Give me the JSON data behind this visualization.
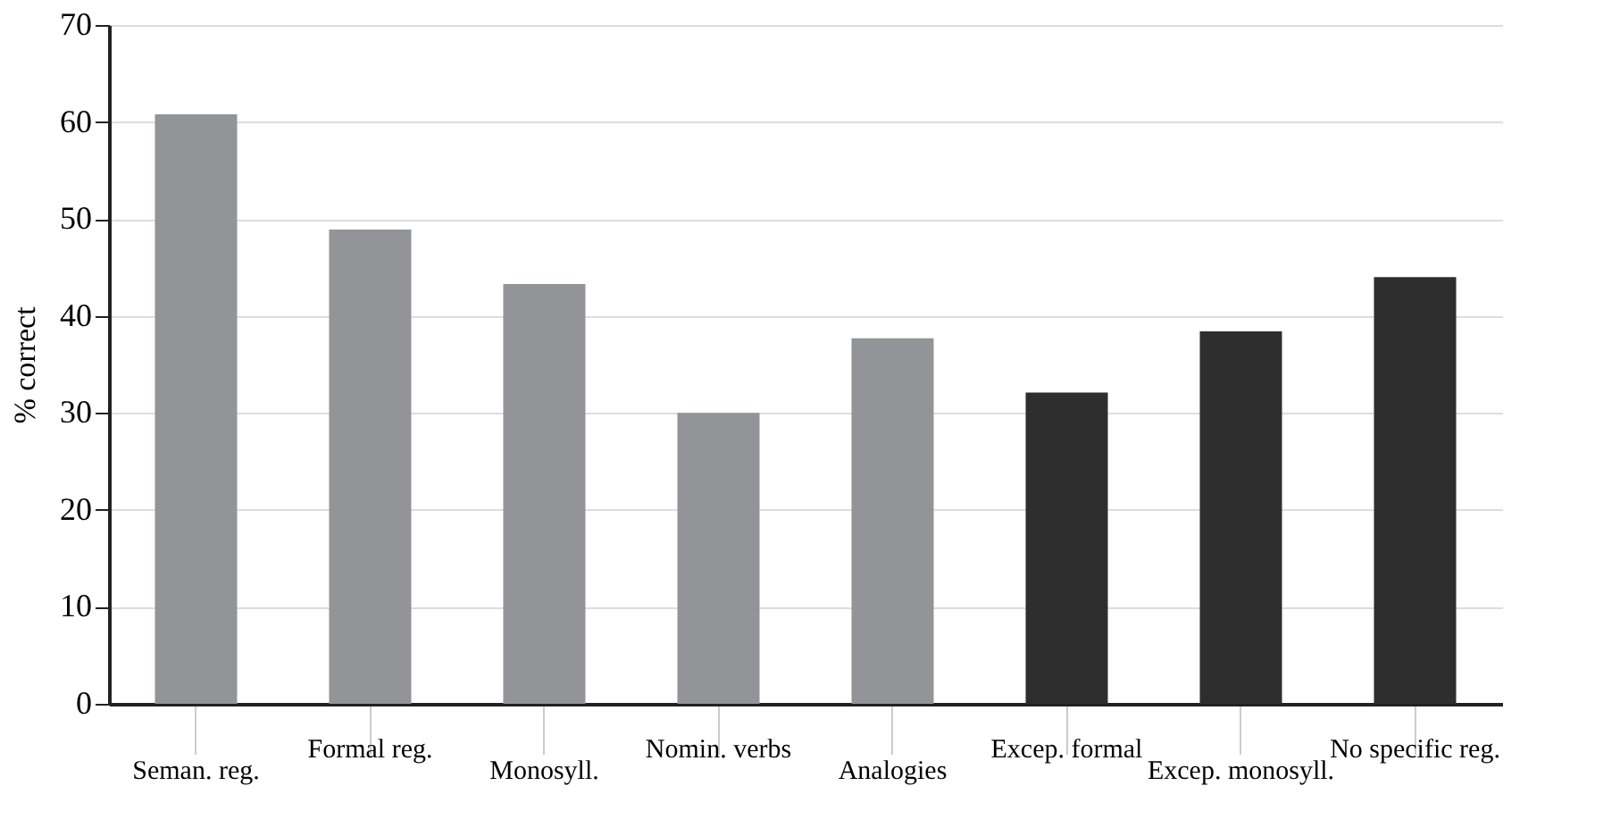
{
  "chart_data": {
    "type": "bar",
    "ylabel": "% correct",
    "categories": [
      "Seman. reg.",
      "Formal reg.",
      "Monosyll.",
      "Nomin. verbs",
      "Analogies",
      "Excep. formal",
      "Excep. monosyll.",
      "No specific reg."
    ],
    "values": [
      60.8,
      48.9,
      43.3,
      30.0,
      37.7,
      32.1,
      38.4,
      44.0
    ],
    "colors": [
      "#939497",
      "#939497",
      "#939497",
      "#939497",
      "#939497",
      "#2e2e2e",
      "#2e2e2e",
      "#2e2e2e"
    ],
    "ylim": [
      0,
      70
    ],
    "yticks": [
      0,
      10,
      20,
      30,
      40,
      50,
      60,
      70
    ],
    "grid": "y"
  }
}
